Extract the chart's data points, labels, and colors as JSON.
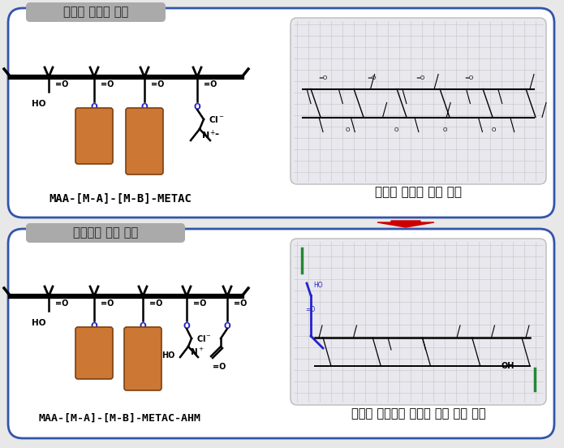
{
  "bg_color": "#e8e8e8",
  "box_bg": "#ffffff",
  "box_border": "#3355aa",
  "tag_bg": "#aaaaaa",
  "tag_text": "#222222",
  "orange": "#cc7733",
  "arrow_red": "#cc0000",
  "inner_bg": "#e8e8ee",
  "inner_border": "#bbbbbb",
  "grid_color": "#cccccc",
  "green_line": "#228833",
  "blue_struct": "#2222cc",
  "label1": "기존의 바인더 수지",
  "label2": "이중결합 포함 수지",
  "formula1": "MAA-[M-A]-[M-B]-METAC",
  "formula2": "MAA-[M-A]-[M-B]-METAC-AHM",
  "react1": "반응성 모노머 사이 경화",
  "react2": "반응성 모노머와 바인더 수지 사이 경화"
}
